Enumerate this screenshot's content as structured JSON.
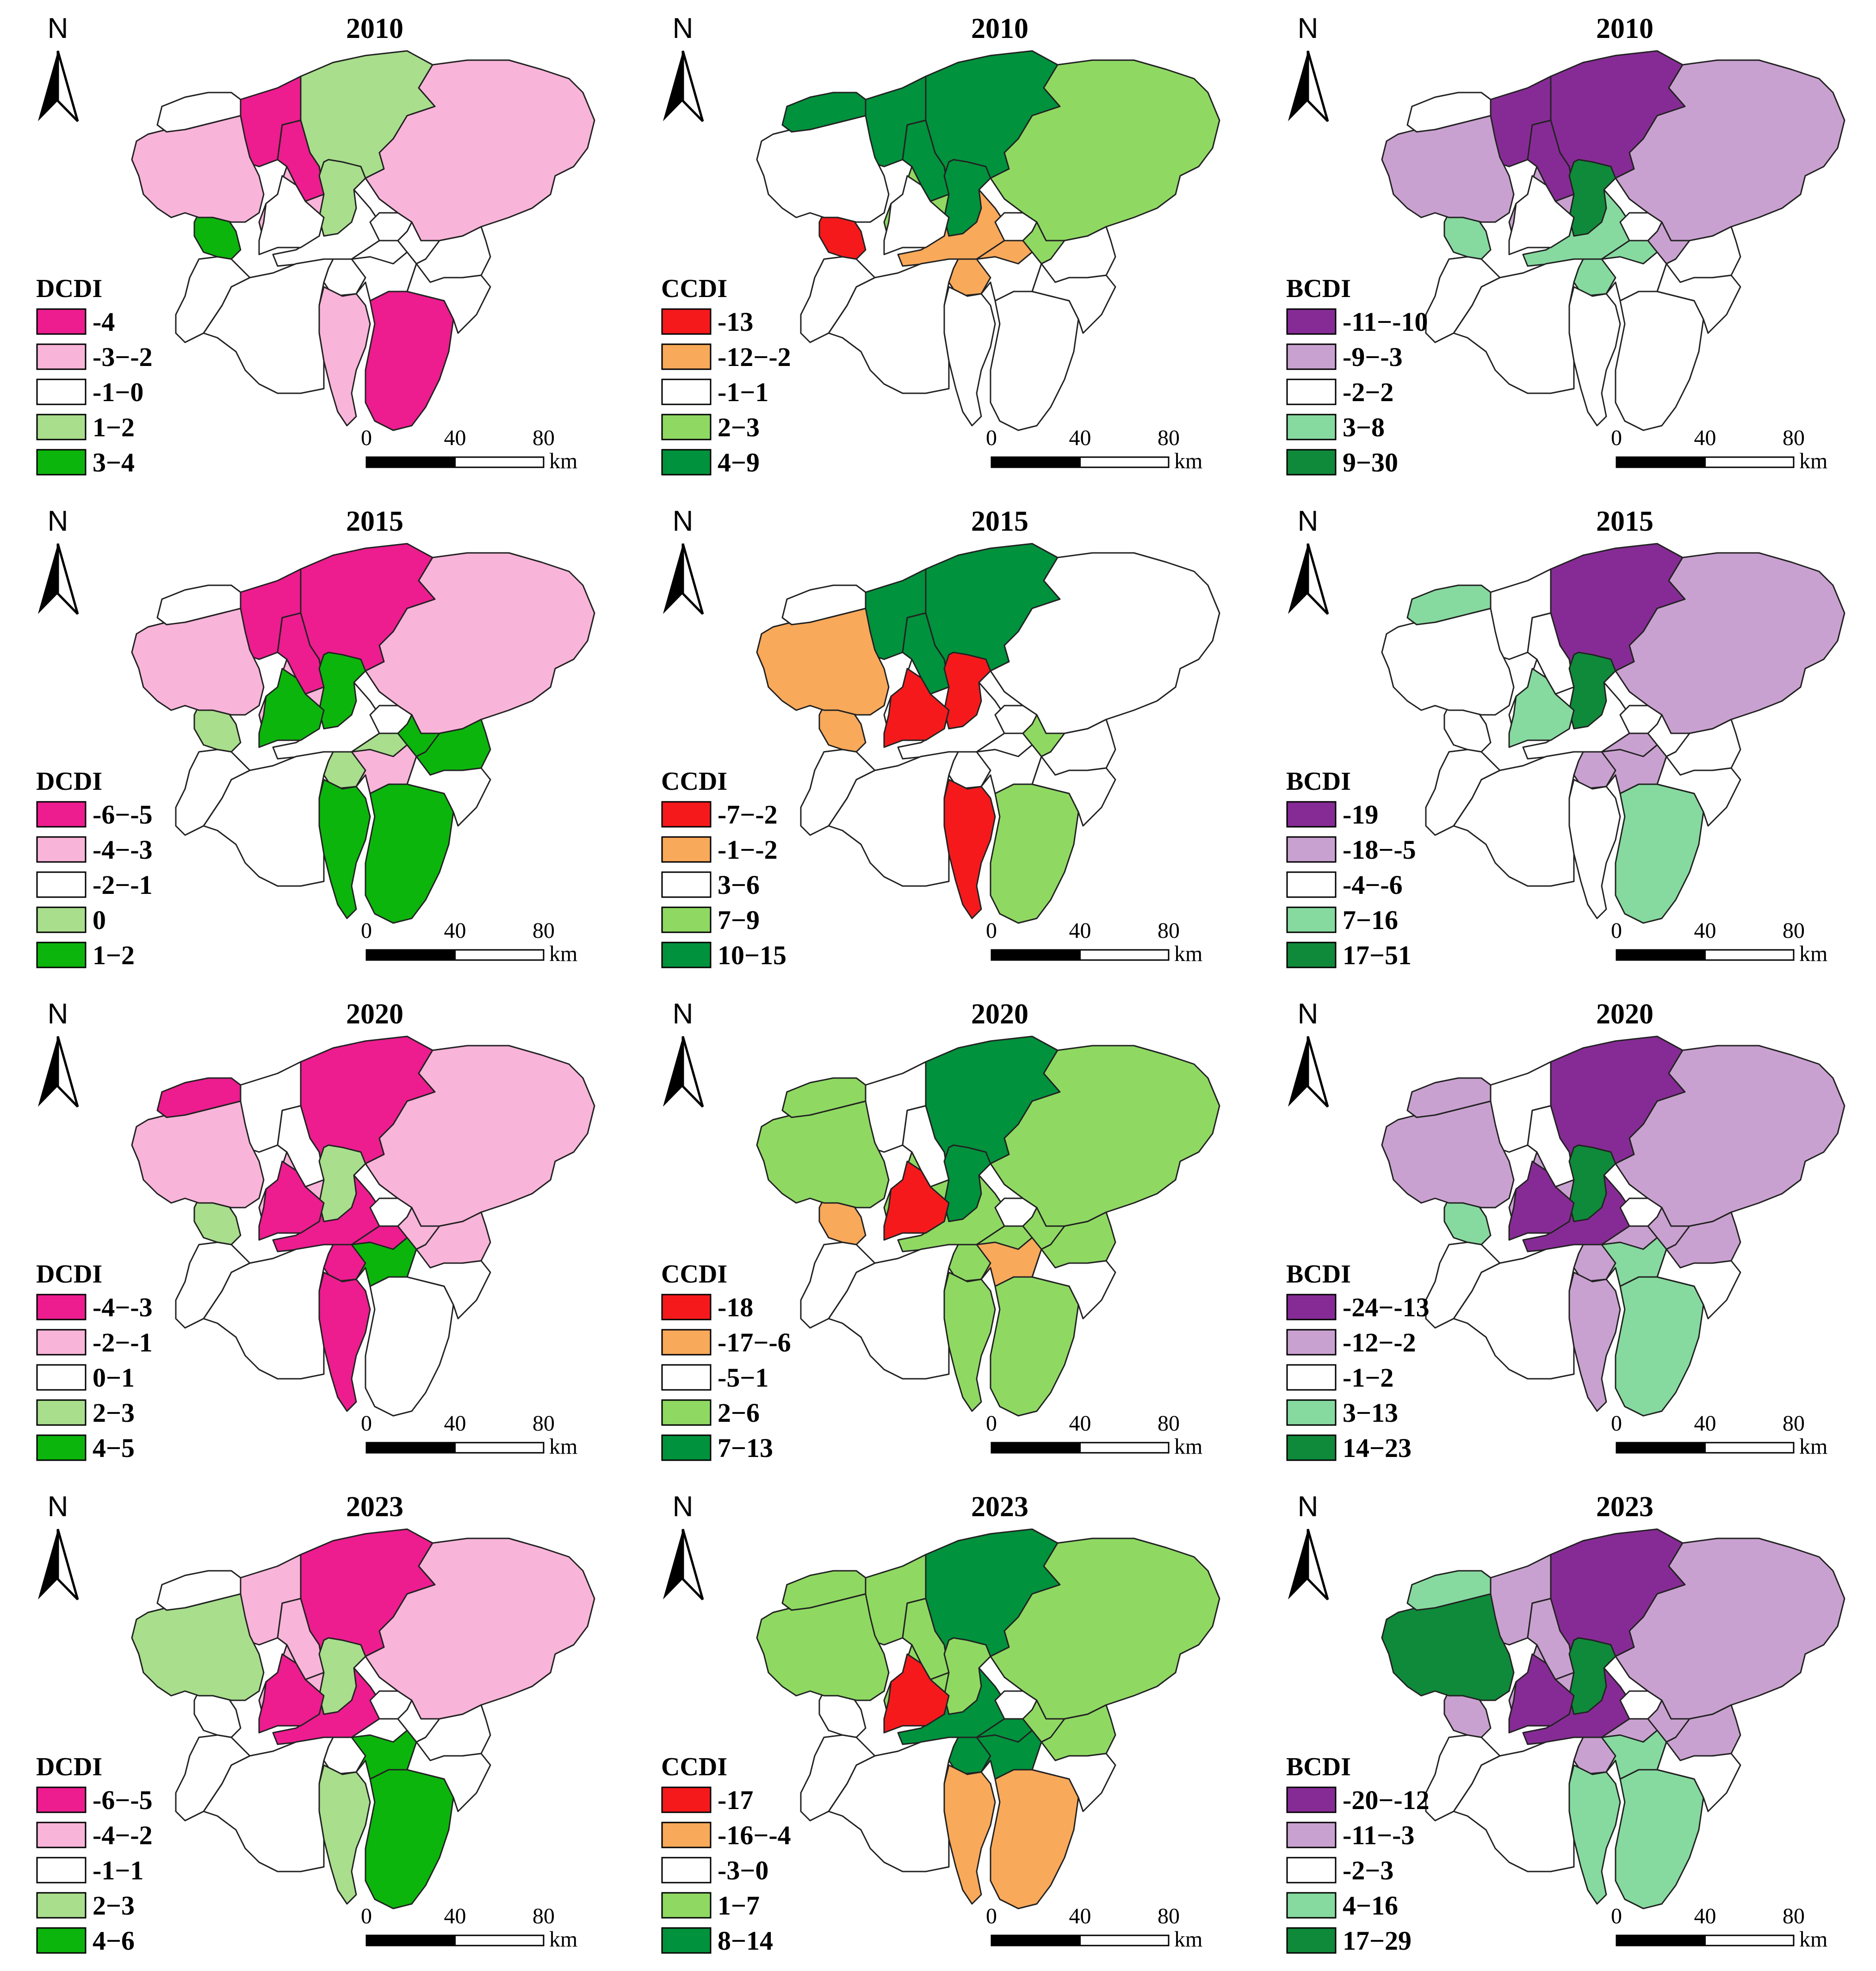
{
  "scale_bar": {
    "ticks": [
      "0",
      "40",
      "80"
    ],
    "unit": "km"
  },
  "north_label": "N",
  "colors": {
    "DCDI": [
      "#ED1C8F",
      "#F9B4D9",
      "#FFFFFF",
      "#A8DE8C",
      "#0CB50C"
    ],
    "CCDI": [
      "#F5191C",
      "#F9A95A",
      "#FFFFFF",
      "#8FD962",
      "#00923C"
    ],
    "BCDI": [
      "#862B95",
      "#C9A1D0",
      "#FFFFFF",
      "#86DA9F",
      "#0F8A3A"
    ]
  },
  "panels": [
    {
      "year": "2010",
      "index": "DCDI",
      "classes": [
        "-4",
        "-3−-2",
        "-1−0",
        "1−2",
        "3−4"
      ],
      "fill": [
        3,
        1,
        0,
        0,
        1,
        2,
        2,
        2,
        2,
        3,
        4,
        1,
        0,
        1,
        2,
        2,
        2,
        2,
        2,
        2,
        2
      ]
    },
    {
      "year": "2010",
      "index": "CCDI",
      "classes": [
        "-13",
        "-12−-2",
        "-1−1",
        "2−3",
        "4−9"
      ],
      "fill": [
        4,
        3,
        4,
        4,
        3,
        1,
        1,
        3,
        2,
        4,
        0,
        2,
        2,
        2,
        4,
        2,
        2,
        2,
        2,
        2,
        2
      ]
    },
    {
      "year": "2010",
      "index": "BCDI",
      "classes": [
        "-11−-10",
        "-9−-3",
        "-2−2",
        "3−8",
        "9−30"
      ],
      "fill": [
        0,
        1,
        0,
        0,
        1,
        3,
        3,
        1,
        2,
        4,
        3,
        2,
        2,
        1,
        2,
        2,
        2,
        2,
        2,
        2,
        2
      ]
    },
    {
      "year": "2015",
      "index": "DCDI",
      "classes": [
        "-6−-5",
        "-4−-3",
        "-2−-1",
        "0",
        "1−2"
      ],
      "fill": [
        0,
        1,
        0,
        0,
        1,
        2,
        3,
        4,
        4,
        4,
        3,
        4,
        4,
        1,
        2,
        4,
        2,
        2,
        2,
        2,
        1
      ]
    },
    {
      "year": "2015",
      "index": "CCDI",
      "classes": [
        "-7−-2",
        "-1−-2",
        "3−6",
        "7−9",
        "10−15"
      ],
      "fill": [
        4,
        2,
        4,
        4,
        2,
        2,
        2,
        3,
        2,
        0,
        1,
        0,
        3,
        1,
        2,
        0,
        2,
        2,
        2,
        2,
        2
      ]
    },
    {
      "year": "2015",
      "index": "BCDI",
      "classes": [
        "-19",
        "-18−-5",
        "-4−-6",
        "7−16",
        "17−51"
      ],
      "fill": [
        0,
        1,
        2,
        2,
        2,
        2,
        1,
        2,
        2,
        4,
        2,
        2,
        3,
        2,
        3,
        3,
        2,
        2,
        2,
        2,
        1
      ]
    },
    {
      "year": "2020",
      "index": "DCDI",
      "classes": [
        "-4−-3",
        "-2−-1",
        "0−1",
        "2−3",
        "4−5"
      ],
      "fill": [
        0,
        1,
        2,
        2,
        1,
        0,
        0,
        1,
        1,
        3,
        3,
        0,
        2,
        1,
        0,
        0,
        2,
        2,
        2,
        2,
        4
      ]
    },
    {
      "year": "2020",
      "index": "CCDI",
      "classes": [
        "-18",
        "-17−-6",
        "-5−1",
        "2−6",
        "7−13"
      ],
      "fill": [
        4,
        3,
        2,
        2,
        3,
        3,
        3,
        3,
        3,
        4,
        1,
        3,
        3,
        3,
        3,
        0,
        2,
        2,
        2,
        2,
        1
      ]
    },
    {
      "year": "2020",
      "index": "BCDI",
      "classes": [
        "-24−-13",
        "-12−-2",
        "-1−2",
        "3−13",
        "14−23"
      ],
      "fill": [
        0,
        1,
        2,
        2,
        1,
        0,
        1,
        1,
        1,
        4,
        3,
        1,
        3,
        1,
        1,
        0,
        2,
        2,
        2,
        2,
        3
      ]
    },
    {
      "year": "2023",
      "index": "DCDI",
      "classes": [
        "-6−-5",
        "-4−-2",
        "-1−1",
        "2−3",
        "4−6"
      ],
      "fill": [
        0,
        1,
        1,
        1,
        1,
        0,
        2,
        2,
        2,
        3,
        2,
        3,
        4,
        3,
        2,
        0,
        2,
        2,
        2,
        2,
        4
      ]
    },
    {
      "year": "2023",
      "index": "CCDI",
      "classes": [
        "-17",
        "-16−-4",
        "-3−0",
        "1−7",
        "8−14"
      ],
      "fill": [
        4,
        3,
        3,
        3,
        3,
        4,
        4,
        3,
        3,
        3,
        2,
        1,
        1,
        3,
        3,
        0,
        2,
        2,
        2,
        2,
        4
      ]
    },
    {
      "year": "2023",
      "index": "BCDI",
      "classes": [
        "-20−-12",
        "-11−-3",
        "-2−3",
        "4−16",
        "17−29"
      ],
      "fill": [
        0,
        1,
        1,
        1,
        1,
        0,
        1,
        1,
        1,
        4,
        1,
        3,
        3,
        4,
        3,
        0,
        2,
        2,
        2,
        2,
        3
      ]
    }
  ]
}
